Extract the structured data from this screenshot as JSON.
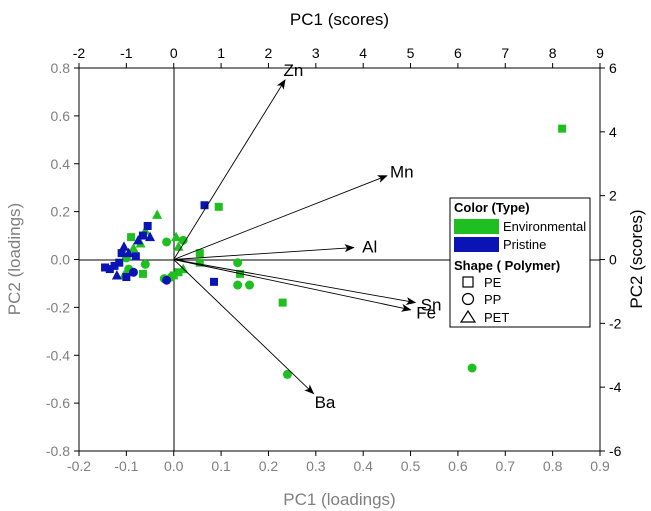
{
  "chart_data": {
    "type": "scatter",
    "subtype": "pca-biplot",
    "axes": {
      "x_bottom": {
        "label": "PC1 (loadings)",
        "range": [
          -0.2,
          0.9
        ],
        "ticks": [
          "-0.2",
          "-0.1",
          "0.0",
          "0.1",
          "0.2",
          "0.3",
          "0.4",
          "0.5",
          "0.6",
          "0.7",
          "0.8",
          "0.9"
        ],
        "color": "#7f7f7f"
      },
      "x_top": {
        "label": "PC1 (scores)",
        "range": [
          -2,
          9
        ],
        "ticks": [
          "-2",
          "-1",
          "0",
          "1",
          "2",
          "3",
          "4",
          "5",
          "6",
          "7",
          "8",
          "9"
        ],
        "color": "#000000"
      },
      "y_left": {
        "label": "PC2 (loadings)",
        "range": [
          -0.8,
          0.8
        ],
        "ticks": [
          "-0.8",
          "-0.6",
          "-0.4",
          "-0.2",
          "0.0",
          "0.2",
          "0.4",
          "0.6",
          "0.8"
        ],
        "color": "#7f7f7f"
      },
      "y_right": {
        "label": "PC2 (scores)",
        "range": [
          -6,
          6
        ],
        "ticks": [
          "-6",
          "-4",
          "-2",
          "0",
          "2",
          "4",
          "6"
        ],
        "color": "#000000"
      }
    },
    "loadings": [
      {
        "name": "Zn",
        "x": 0.235,
        "y": 0.75
      },
      {
        "name": "Mn",
        "x": 0.45,
        "y": 0.35
      },
      {
        "name": "Al",
        "x": 0.38,
        "y": 0.05
      },
      {
        "name": "Sn",
        "x": 0.51,
        "y": -0.18
      },
      {
        "name": "Fe",
        "x": 0.5,
        "y": -0.21
      },
      {
        "name": "Ba",
        "x": 0.295,
        "y": -0.56
      }
    ],
    "legend": {
      "color_title": "Color  (Type)",
      "types": [
        {
          "name": "Environmental",
          "color": "#1fbf1f"
        },
        {
          "name": "Pristine",
          "color": "#0a14b4"
        }
      ],
      "shape_title": "Shape ( Polymer)",
      "polymers": [
        {
          "name": "PE",
          "shape": "square"
        },
        {
          "name": "PP",
          "shape": "circle"
        },
        {
          "name": "PET",
          "shape": "triangle"
        }
      ]
    },
    "series": [
      {
        "name": "Environmental",
        "color": "#1fbf1f",
        "points": [
          {
            "x": 8.2,
            "y": 4.1,
            "shape": "square"
          },
          {
            "x": 6.3,
            "y": -3.4,
            "shape": "circle"
          },
          {
            "x": 2.4,
            "y": -3.6,
            "shape": "circle"
          },
          {
            "x": 2.3,
            "y": -1.35,
            "shape": "square"
          },
          {
            "x": 1.6,
            "y": -0.8,
            "shape": "circle"
          },
          {
            "x": 1.35,
            "y": -0.8,
            "shape": "circle"
          },
          {
            "x": 1.35,
            "y": -0.1,
            "shape": "circle"
          },
          {
            "x": 1.4,
            "y": -0.45,
            "shape": "square"
          },
          {
            "x": 0.95,
            "y": 1.65,
            "shape": "square"
          },
          {
            "x": 0.55,
            "y": -0.1,
            "shape": "square"
          },
          {
            "x": 0.55,
            "y": 0.2,
            "shape": "square"
          },
          {
            "x": 0.2,
            "y": 0.6,
            "shape": "circle"
          },
          {
            "x": 0.05,
            "y": 0.7,
            "shape": "triangle"
          },
          {
            "x": 0.1,
            "y": 0.4,
            "shape": "triangle"
          },
          {
            "x": 0.2,
            "y": -0.3,
            "shape": "triangle"
          },
          {
            "x": 0.1,
            "y": -0.4,
            "shape": "square"
          },
          {
            "x": 0.0,
            "y": -0.5,
            "shape": "square"
          },
          {
            "x": -0.05,
            "y": -0.55,
            "shape": "circle"
          },
          {
            "x": -0.2,
            "y": -0.6,
            "shape": "circle"
          },
          {
            "x": -0.15,
            "y": 0.55,
            "shape": "circle"
          },
          {
            "x": -0.35,
            "y": 1.4,
            "shape": "triangle"
          },
          {
            "x": -0.6,
            "y": 0.9,
            "shape": "triangle"
          },
          {
            "x": -0.7,
            "y": 0.5,
            "shape": "triangle"
          },
          {
            "x": -0.6,
            "y": -0.15,
            "shape": "circle"
          },
          {
            "x": -0.65,
            "y": -0.45,
            "shape": "square"
          },
          {
            "x": -0.85,
            "y": 0.35,
            "shape": "triangle"
          },
          {
            "x": -0.9,
            "y": 0.7,
            "shape": "square"
          },
          {
            "x": -0.95,
            "y": -0.3,
            "shape": "circle"
          },
          {
            "x": -1.0,
            "y": 0.05,
            "shape": "circle"
          },
          {
            "x": -1.05,
            "y": -0.5,
            "shape": "triangle"
          },
          {
            "x": -0.95,
            "y": -0.4,
            "shape": "square"
          }
        ]
      },
      {
        "name": "Pristine",
        "color": "#0a14b4",
        "points": [
          {
            "x": 0.65,
            "y": 1.7,
            "shape": "square"
          },
          {
            "x": 0.85,
            "y": -0.7,
            "shape": "square"
          },
          {
            "x": -0.15,
            "y": -0.65,
            "shape": "circle"
          },
          {
            "x": -0.55,
            "y": 1.05,
            "shape": "square"
          },
          {
            "x": -0.5,
            "y": 0.7,
            "shape": "triangle"
          },
          {
            "x": -0.65,
            "y": 0.75,
            "shape": "square"
          },
          {
            "x": -0.75,
            "y": 0.6,
            "shape": "triangle"
          },
          {
            "x": -0.8,
            "y": 0.1,
            "shape": "square"
          },
          {
            "x": -0.85,
            "y": -0.4,
            "shape": "circle"
          },
          {
            "x": -0.95,
            "y": 0.2,
            "shape": "triangle"
          },
          {
            "x": -1.05,
            "y": 0.4,
            "shape": "triangle"
          },
          {
            "x": -1.1,
            "y": 0.2,
            "shape": "square"
          },
          {
            "x": -1.15,
            "y": -0.1,
            "shape": "square"
          },
          {
            "x": -1.25,
            "y": -0.2,
            "shape": "square"
          },
          {
            "x": -1.35,
            "y": -0.3,
            "shape": "square"
          },
          {
            "x": -1.45,
            "y": -0.25,
            "shape": "square"
          },
          {
            "x": -1.2,
            "y": -0.5,
            "shape": "triangle"
          },
          {
            "x": -1.0,
            "y": -0.55,
            "shape": "square"
          }
        ]
      }
    ]
  }
}
